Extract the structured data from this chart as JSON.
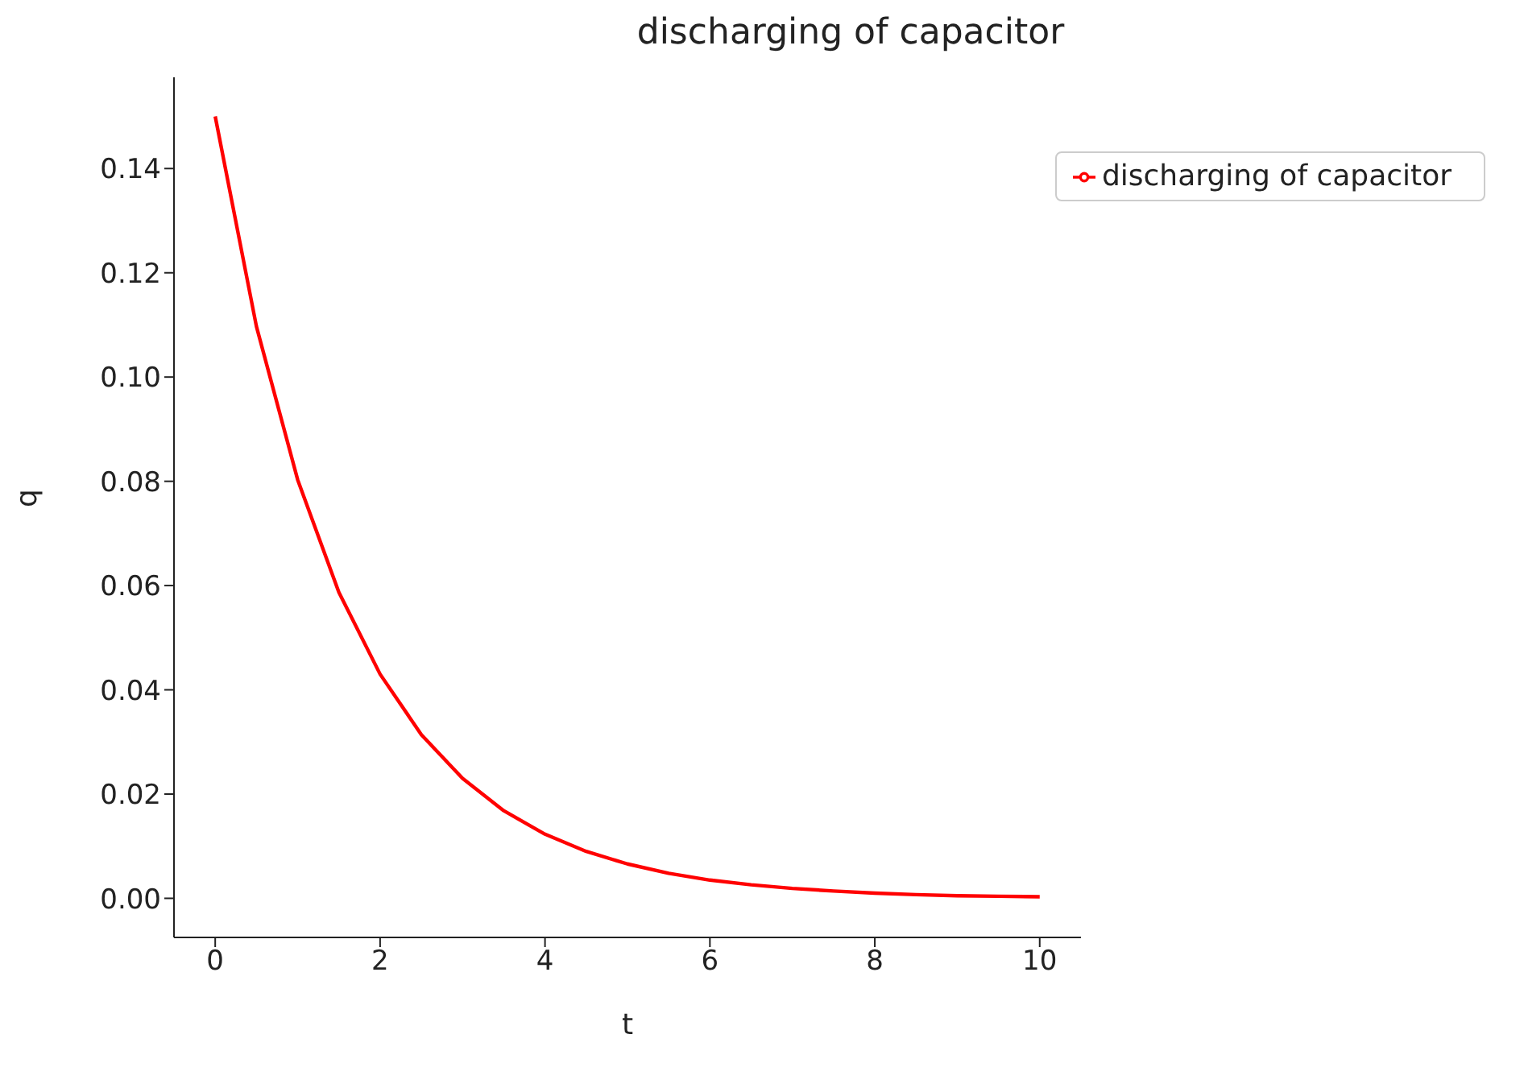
{
  "chart_data": {
    "type": "line",
    "title": "discharging of capacitor",
    "xlabel": "t",
    "ylabel": "q",
    "x": [
      0,
      0.5,
      1,
      1.5,
      2,
      2.5,
      3,
      3.5,
      4,
      4.5,
      5,
      5.5,
      6,
      6.5,
      7,
      7.5,
      8,
      8.5,
      9,
      9.5,
      10
    ],
    "series": [
      {
        "name": "discharging of capacitor",
        "color": "#ff0000",
        "values": [
          0.15,
          0.1097,
          0.0803,
          0.0587,
          0.043,
          0.0314,
          0.023,
          0.0168,
          0.0123,
          0.009,
          0.0066,
          0.0048,
          0.0035,
          0.0026,
          0.0019,
          0.0014,
          0.001,
          0.0007,
          0.0005,
          0.0004,
          0.0003
        ]
      }
    ],
    "xlim": [
      -0.5,
      10.5
    ],
    "xticks": [
      0,
      2,
      4,
      6,
      8,
      10
    ],
    "ylim": [
      -0.0075,
      0.1575
    ],
    "yticks": [
      {
        "value": 0,
        "label": "0.00"
      },
      {
        "value": 0.02,
        "label": "0.02"
      },
      {
        "value": 0.04,
        "label": "0.04"
      },
      {
        "value": 0.06,
        "label": "0.06"
      },
      {
        "value": 0.08,
        "label": "0.08"
      },
      {
        "value": 0.1,
        "label": "0.10"
      },
      {
        "value": 0.12,
        "label": "0.12"
      },
      {
        "value": 0.14,
        "label": "0.14"
      }
    ],
    "grid": false,
    "legend": "top right",
    "marker": "none",
    "line_style": "solid"
  }
}
